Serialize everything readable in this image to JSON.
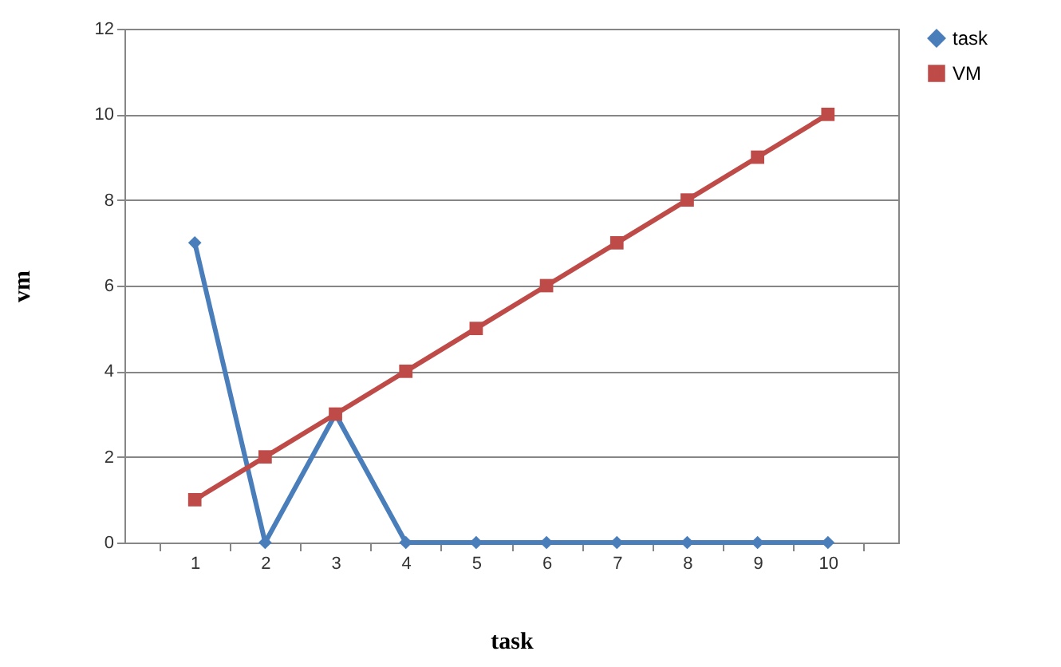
{
  "chart_data": {
    "type": "line",
    "xlabel": "task",
    "ylabel": "vm",
    "categories": [
      "1",
      "2",
      "3",
      "4",
      "5",
      "6",
      "7",
      "8",
      "9",
      "10"
    ],
    "series": [
      {
        "name": "task",
        "color": "#4a7ebb",
        "marker": "diamond",
        "values": [
          7,
          0,
          3,
          0,
          0,
          0,
          0,
          0,
          0,
          0
        ]
      },
      {
        "name": "VM",
        "color": "#be4b48",
        "marker": "square",
        "values": [
          1,
          2,
          3,
          4,
          5,
          6,
          7,
          8,
          9,
          10
        ]
      }
    ],
    "ylim": [
      0,
      12
    ],
    "yticks": [
      0,
      2,
      4,
      6,
      8,
      10,
      12
    ],
    "grid": "y",
    "legend": "right",
    "line_style": "solid"
  }
}
